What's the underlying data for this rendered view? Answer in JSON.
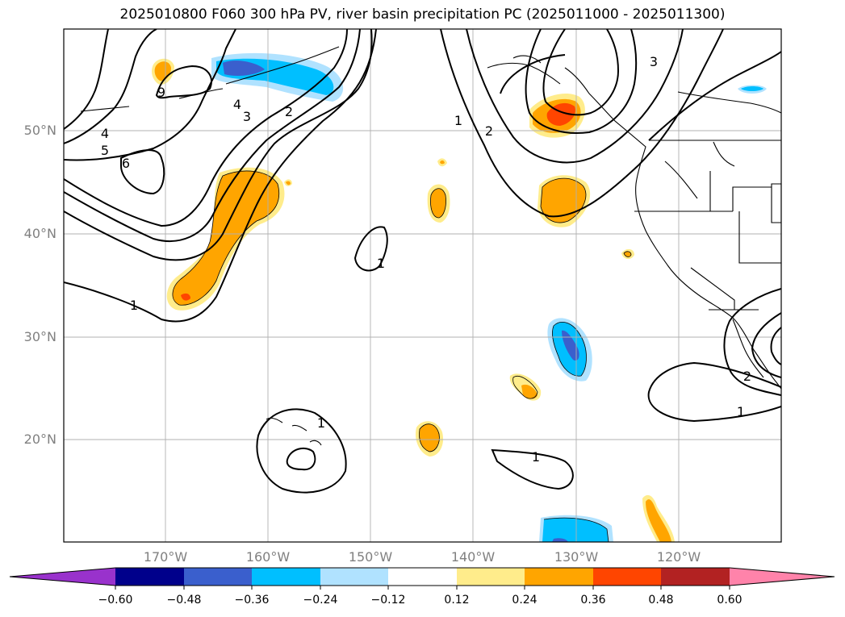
{
  "title": "2025010800 F060 300 hPa PV, river basin precipitation PC (2025011000 - 2025011300)",
  "lat_labels": [
    "50°N",
    "40°N",
    "30°N",
    "20°N"
  ],
  "lon_labels": [
    "170°W",
    "160°W",
    "150°W",
    "140°W",
    "130°W",
    "120°W"
  ],
  "contour_labels": [
    "9",
    "4",
    "5",
    "6",
    "4",
    "3",
    "2",
    "1",
    "2",
    "3",
    "1",
    "1",
    "1",
    "1",
    "2",
    "1"
  ],
  "colorbar": {
    "ticks": [
      "−0.60",
      "−0.48",
      "−0.36",
      "−0.24",
      "−0.12",
      "0.12",
      "0.24",
      "0.36",
      "0.48",
      "0.60"
    ],
    "colors": [
      "#9932cc",
      "#00008b",
      "#3a5fcd",
      "#00bfff",
      "#b0e2ff",
      "#ffffff",
      "#ffec8b",
      "#ffa500",
      "#ff4500",
      "#b22222",
      "#ff83aa"
    ]
  }
}
